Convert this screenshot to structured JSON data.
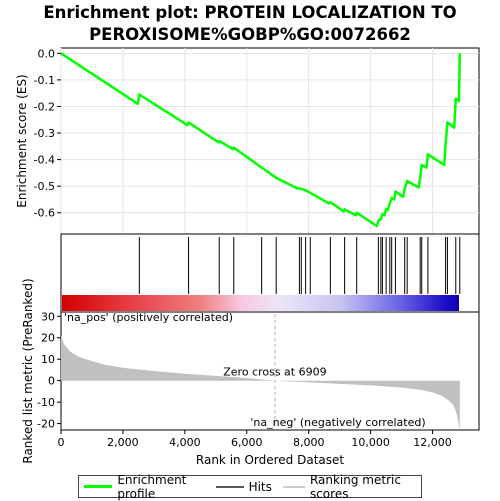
{
  "title_line1": "Enrichment plot: PROTEIN LOCALIZATION TO",
  "title_line2": "PEROXISOME%GOBP%GO:0072662",
  "colors": {
    "enrichment": "#00ff00",
    "hits": "#000000",
    "metric_fill": "#c0c0c0",
    "zero_line": "#aaaaaa",
    "pos_label": "#cc0000",
    "neg_label": "#0000cc"
  },
  "legend": [
    {
      "label": "Enrichment profile",
      "color": "#00ff00",
      "kind": "thick"
    },
    {
      "label": "Hits",
      "color": "#555555",
      "kind": "thin"
    },
    {
      "label": "Ranking metric scores",
      "color": "#cccccc",
      "kind": "thin"
    }
  ],
  "chart_data": [
    {
      "type": "line",
      "name": "enrichment_profile",
      "ylabel": "Enrichment score (ES)",
      "ylim": [
        -0.68,
        0.02
      ],
      "yticks": [
        0.0,
        -0.1,
        -0.2,
        -0.3,
        -0.4,
        -0.5,
        -0.6
      ],
      "ytick_labels": [
        "0.0",
        "-0.1",
        "-0.2",
        "-0.3",
        "-0.4",
        "-0.5",
        "-0.6"
      ],
      "xlim": [
        0,
        13500
      ],
      "grid": true,
      "points": [
        [
          0,
          0.0
        ],
        [
          2480,
          -0.19
        ],
        [
          2530,
          -0.155
        ],
        [
          4080,
          -0.27
        ],
        [
          4120,
          -0.26
        ],
        [
          5080,
          -0.335
        ],
        [
          5110,
          -0.33
        ],
        [
          5550,
          -0.36
        ],
        [
          5580,
          -0.355
        ],
        [
          6480,
          -0.43
        ],
        [
          6950,
          -0.468
        ],
        [
          7650,
          -0.51
        ],
        [
          7700,
          -0.508
        ],
        [
          7760,
          -0.51
        ],
        [
          7900,
          -0.515
        ],
        [
          8050,
          -0.525
        ],
        [
          8650,
          -0.565
        ],
        [
          8700,
          -0.56
        ],
        [
          9130,
          -0.595
        ],
        [
          9160,
          -0.587
        ],
        [
          9520,
          -0.61
        ],
        [
          9550,
          -0.6
        ],
        [
          10200,
          -0.65
        ],
        [
          10250,
          -0.63
        ],
        [
          10330,
          -0.625
        ],
        [
          10380,
          -0.605
        ],
        [
          10450,
          -0.61
        ],
        [
          10500,
          -0.585
        ],
        [
          10550,
          -0.59
        ],
        [
          10620,
          -0.565
        ],
        [
          10680,
          -0.545
        ],
        [
          10760,
          -0.55
        ],
        [
          10800,
          -0.52
        ],
        [
          11050,
          -0.54
        ],
        [
          11100,
          -0.51
        ],
        [
          11180,
          -0.48
        ],
        [
          11550,
          -0.505
        ],
        [
          11600,
          -0.47
        ],
        [
          11650,
          -0.42
        ],
        [
          11800,
          -0.43
        ],
        [
          11850,
          -0.38
        ],
        [
          12380,
          -0.42
        ],
        [
          12420,
          -0.34
        ],
        [
          12480,
          -0.26
        ],
        [
          12700,
          -0.28
        ],
        [
          12750,
          -0.17
        ],
        [
          12850,
          -0.18
        ],
        [
          12880,
          0.0
        ]
      ]
    },
    {
      "type": "hits",
      "name": "hits",
      "xlim": [
        0,
        13500
      ],
      "x": [
        2530,
        4120,
        5110,
        5580,
        6480,
        6950,
        7700,
        7760,
        7900,
        8050,
        8700,
        9160,
        9550,
        10250,
        10330,
        10380,
        10500,
        10620,
        10680,
        10800,
        11100,
        11180,
        11600,
        11650,
        11850,
        12420,
        12480,
        12750,
        12880
      ]
    },
    {
      "type": "area",
      "name": "ranked_list_metric",
      "xlabel": "Rank in Ordered Dataset",
      "ylabel": "Ranked list metric (PreRanked)",
      "xlim": [
        0,
        13500
      ],
      "ylim": [
        -23,
        32
      ],
      "xticks": [
        0,
        2000,
        4000,
        6000,
        8000,
        10000,
        12000
      ],
      "xtick_labels": [
        "0",
        "2,000",
        "4,000",
        "6,000",
        "8,000",
        "10,000",
        "12,000"
      ],
      "yticks": [
        30,
        20,
        10,
        0,
        -10,
        -20
      ],
      "ytick_labels": [
        "30",
        "20",
        "10",
        "0",
        "-10",
        "-20"
      ],
      "zero_cross_x": 6909,
      "zero_cross_label": "Zero cross at 6909",
      "pos_label": "'na_pos' (positively correlated)",
      "neg_label": "'na_neg' (negatively correlated)",
      "points": [
        [
          0,
          21
        ],
        [
          100,
          17
        ],
        [
          300,
          13.5
        ],
        [
          600,
          11
        ],
        [
          1000,
          9
        ],
        [
          1500,
          7.2
        ],
        [
          2000,
          6
        ],
        [
          3000,
          4.5
        ],
        [
          4000,
          3.2
        ],
        [
          5000,
          2.2
        ],
        [
          6000,
          1.2
        ],
        [
          6909,
          0
        ],
        [
          8000,
          -0.8
        ],
        [
          9000,
          -1.5
        ],
        [
          10000,
          -2.2
        ],
        [
          11000,
          -3.2
        ],
        [
          11600,
          -4.2
        ],
        [
          12000,
          -5.5
        ],
        [
          12300,
          -7
        ],
        [
          12500,
          -9
        ],
        [
          12650,
          -11
        ],
        [
          12750,
          -14
        ],
        [
          12820,
          -18
        ],
        [
          12860,
          -22
        ],
        [
          12880,
          -22
        ]
      ]
    }
  ]
}
